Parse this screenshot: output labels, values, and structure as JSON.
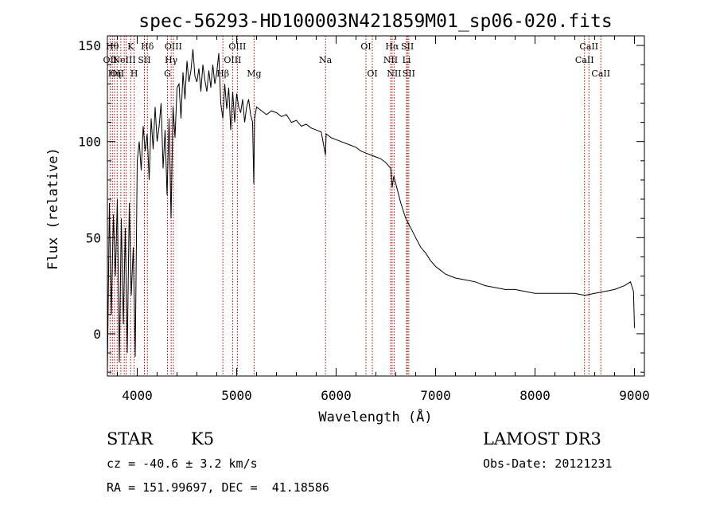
{
  "chart_data": {
    "type": "line",
    "title": "spec-56293-HD100003N421859M01_sp06-020.fits",
    "xlabel": "Wavelength (Å)",
    "ylabel": "Flux (relative)",
    "xlim": [
      3700,
      9100
    ],
    "ylim": [
      -22,
      155
    ],
    "xticks": [
      4000,
      5000,
      6000,
      7000,
      8000,
      9000
    ],
    "yticks": [
      0,
      50,
      100,
      150
    ],
    "line_color": "#000000",
    "marker_color": "#a00000",
    "series": [
      {
        "name": "flux",
        "x": [
          3700,
          3720,
          3740,
          3760,
          3780,
          3800,
          3820,
          3840,
          3860,
          3880,
          3900,
          3920,
          3940,
          3960,
          3980,
          4000,
          4020,
          4040,
          4060,
          4080,
          4100,
          4120,
          4140,
          4160,
          4180,
          4200,
          4220,
          4240,
          4260,
          4280,
          4300,
          4320,
          4340,
          4360,
          4380,
          4400,
          4420,
          4440,
          4460,
          4480,
          4500,
          4520,
          4540,
          4560,
          4580,
          4600,
          4620,
          4640,
          4660,
          4680,
          4700,
          4720,
          4740,
          4760,
          4780,
          4800,
          4820,
          4840,
          4861,
          4880,
          4900,
          4920,
          4940,
          4960,
          4980,
          5000,
          5020,
          5040,
          5060,
          5080,
          5100,
          5120,
          5140,
          5160,
          5172,
          5180,
          5200,
          5250,
          5300,
          5350,
          5400,
          5450,
          5500,
          5550,
          5600,
          5650,
          5700,
          5750,
          5800,
          5850,
          5893,
          5900,
          5950,
          6000,
          6050,
          6100,
          6150,
          6200,
          6250,
          6300,
          6350,
          6400,
          6450,
          6500,
          6550,
          6563,
          6580,
          6600,
          6650,
          6700,
          6750,
          6800,
          6850,
          6900,
          6950,
          7000,
          7050,
          7100,
          7150,
          7200,
          7300,
          7400,
          7500,
          7600,
          7700,
          7800,
          7900,
          8000,
          8100,
          8200,
          8300,
          8400,
          8500,
          8600,
          8700,
          8800,
          8900,
          8960,
          8990,
          9000
        ],
        "y": [
          -20,
          68,
          10,
          62,
          30,
          70,
          -15,
          60,
          5,
          55,
          -10,
          68,
          20,
          45,
          -12,
          90,
          100,
          85,
          108,
          95,
          104,
          80,
          112,
          96,
          118,
          100,
          108,
          120,
          86,
          106,
          72,
          112,
          60,
          118,
          102,
          128,
          130,
          112,
          136,
          122,
          142,
          131,
          137,
          148,
          134,
          131,
          138,
          126,
          140,
          132,
          126,
          137,
          128,
          140,
          130,
          136,
          146,
          120,
          112,
          130,
          117,
          128,
          106,
          126,
          110,
          125,
          118,
          115,
          122,
          110,
          118,
          122,
          114,
          110,
          78,
          112,
          118,
          116,
          114,
          116,
          115,
          113,
          114,
          110,
          111,
          108,
          109,
          107,
          106,
          105,
          93,
          104,
          102,
          101,
          100,
          99,
          98,
          97,
          95,
          94,
          93,
          92,
          91,
          89,
          86,
          76,
          82,
          78,
          68,
          60,
          55,
          50,
          45,
          42,
          38,
          35,
          33,
          31,
          30,
          29,
          28,
          27,
          25,
          24,
          23,
          23,
          22,
          21,
          21,
          21,
          21,
          21,
          20,
          21,
          22,
          23,
          25,
          27,
          22,
          3
        ]
      }
    ],
    "line_markers": [
      {
        "x": 3727,
        "label": "OII",
        "row": 1
      },
      {
        "x": 3750,
        "label": "Hθ",
        "row": 0
      },
      {
        "x": 3771,
        "label": "Hη",
        "row": 2
      },
      {
        "x": 3798,
        "label": "OII",
        "row": 2
      },
      {
        "x": 3835,
        "label": "",
        "row": 0
      },
      {
        "x": 3869,
        "label": "NeIII",
        "row": 1
      },
      {
        "x": 3889,
        "label": "",
        "row": 0
      },
      {
        "x": 3934,
        "label": "K",
        "row": 0
      },
      {
        "x": 3969,
        "label": "H",
        "row": 2
      },
      {
        "x": 4072,
        "label": "SII",
        "row": 1
      },
      {
        "x": 4102,
        "label": "Hδ",
        "row": 0
      },
      {
        "x": 4304,
        "label": "G",
        "row": 2
      },
      {
        "x": 4341,
        "label": "Hγ",
        "row": 1
      },
      {
        "x": 4363,
        "label": "OIII",
        "row": 0
      },
      {
        "x": 4861,
        "label": "Hβ",
        "row": 2
      },
      {
        "x": 4959,
        "label": "OIII",
        "row": 1
      },
      {
        "x": 5007,
        "label": "OIII",
        "row": 0
      },
      {
        "x": 5175,
        "label": "Mg",
        "row": 2
      },
      {
        "x": 5893,
        "label": "Na",
        "row": 1
      },
      {
        "x": 6300,
        "label": "OI",
        "row": 0
      },
      {
        "x": 6364,
        "label": "OI",
        "row": 2
      },
      {
        "x": 6548,
        "label": "NII",
        "row": 1
      },
      {
        "x": 6563,
        "label": "Hα",
        "row": 0
      },
      {
        "x": 6583,
        "label": "NII",
        "row": 2
      },
      {
        "x": 6708,
        "label": "Li",
        "row": 1
      },
      {
        "x": 6717,
        "label": "SII",
        "row": 0
      },
      {
        "x": 6731,
        "label": "SII",
        "row": 2
      },
      {
        "x": 8498,
        "label": "CaII",
        "row": 1
      },
      {
        "x": 8542,
        "label": "CaII",
        "row": 0
      },
      {
        "x": 8662,
        "label": "CaII",
        "row": 2
      }
    ]
  },
  "info": {
    "object_class": "STAR",
    "subclass": "K5",
    "survey": "LAMOST DR3",
    "redshift": "cz = -40.6 ± 3.2 km/s",
    "obs_date": "Obs-Date: 20121231",
    "coords": "RA = 151.99697, DEC =  41.18586"
  }
}
